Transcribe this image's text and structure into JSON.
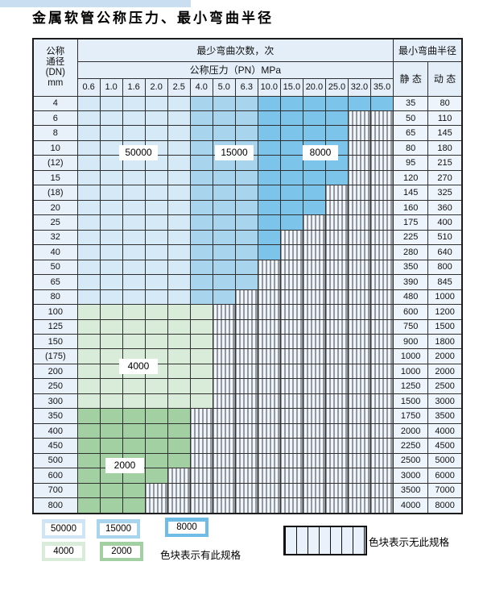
{
  "title": "金属软管公称压力、最小弯曲半径",
  "colors": {
    "cycles_50000_blue": "#d5e9f6",
    "cycles_15000_blue": "#a9d4ee",
    "cycles_8000_blue": "#7cc4e9",
    "cycles_4000_green": "#d9ecd9",
    "cycles_2000_green": "#a2d0a3",
    "hatch_cell_bg": "#eef5fc",
    "grid_line": "#2f2f2f",
    "header_bg": "#e3eef8",
    "label_col_bg": "#e8f1fa",
    "value_col_bg": "#edf4fb",
    "top_strip": "#c9dff1"
  },
  "header": {
    "dn_label_lines": [
      "公称",
      "通径",
      "(DN)",
      "mm"
    ],
    "bend_cycles_label": "最少弯曲次数，次",
    "min_bend_radius_label": "最小弯曲半径",
    "pressure_label": "公称压力（PN）MPa",
    "static_label": "静 态",
    "dynamic_label": "动 态"
  },
  "zone_labels": [
    "50000",
    "15000",
    "8000",
    "4000",
    "2000"
  ],
  "legend": {
    "has_spec_swatches": [
      {
        "label": "50000",
        "color": "#cfe4f4"
      },
      {
        "label": "15000",
        "color": "#a9d4ee"
      },
      {
        "label": "8000",
        "color": "#6fbde6"
      },
      {
        "label": "4000",
        "color": "#d9ecd9"
      },
      {
        "label": "2000",
        "color": "#a2d0a3"
      }
    ],
    "has_spec_text": "色块表示有此规格",
    "no_spec_text": "色块表示无此规格"
  },
  "chart_data": {
    "type": "table",
    "title": "金属软管公称压力、最小弯曲半径",
    "pressure_columns_mpa": [
      "0.6",
      "1.0",
      "1.6",
      "2.0",
      "2.5",
      "4.0",
      "5.0",
      "6.3",
      "10.0",
      "15.0",
      "20.0",
      "25.0",
      "32.0",
      "35.0"
    ],
    "cycle_zones": [
      {
        "cycles": "50000",
        "applies_to": "blue rows, pressure columns 0.6–2.5"
      },
      {
        "cycles": "15000",
        "applies_to": "blue rows, pressure columns 4.0–6.3"
      },
      {
        "cycles": "8000",
        "applies_to": "blue rows, pressure columns 10.0–35.0"
      },
      {
        "cycles": "4000",
        "applies_to": "light-green rows DN 100–300"
      },
      {
        "cycles": "2000",
        "applies_to": "dark-green rows DN 350–800"
      }
    ],
    "rows": [
      {
        "dn": "4",
        "max_pn": "35.0",
        "static": "35",
        "dynamic": "80"
      },
      {
        "dn": "6",
        "max_pn": "25.0",
        "static": "50",
        "dynamic": "110"
      },
      {
        "dn": "8",
        "max_pn": "25.0",
        "static": "65",
        "dynamic": "145"
      },
      {
        "dn": "10",
        "max_pn": "25.0",
        "static": "80",
        "dynamic": "180"
      },
      {
        "dn": "(12)",
        "max_pn": "25.0",
        "static": "95",
        "dynamic": "215"
      },
      {
        "dn": "15",
        "max_pn": "25.0",
        "static": "120",
        "dynamic": "270"
      },
      {
        "dn": "(18)",
        "max_pn": "20.0",
        "static": "145",
        "dynamic": "325"
      },
      {
        "dn": "20",
        "max_pn": "20.0",
        "static": "160",
        "dynamic": "360"
      },
      {
        "dn": "25",
        "max_pn": "15.0",
        "static": "175",
        "dynamic": "400"
      },
      {
        "dn": "32",
        "max_pn": "10.0",
        "static": "225",
        "dynamic": "510"
      },
      {
        "dn": "40",
        "max_pn": "10.0",
        "static": "280",
        "dynamic": "640"
      },
      {
        "dn": "50",
        "max_pn": "6.3",
        "static": "350",
        "dynamic": "800"
      },
      {
        "dn": "65",
        "max_pn": "6.3",
        "static": "390",
        "dynamic": "845"
      },
      {
        "dn": "80",
        "max_pn": "5.0",
        "static": "480",
        "dynamic": "1000"
      },
      {
        "dn": "100",
        "max_pn": "4.0",
        "static": "600",
        "dynamic": "1200"
      },
      {
        "dn": "125",
        "max_pn": "4.0",
        "static": "750",
        "dynamic": "1500"
      },
      {
        "dn": "150",
        "max_pn": "4.0",
        "static": "900",
        "dynamic": "1800"
      },
      {
        "dn": "(175)",
        "max_pn": "4.0",
        "static": "1000",
        "dynamic": "2000"
      },
      {
        "dn": "200",
        "max_pn": "4.0",
        "static": "1000",
        "dynamic": "2000"
      },
      {
        "dn": "250",
        "max_pn": "4.0",
        "static": "1250",
        "dynamic": "2500"
      },
      {
        "dn": "300",
        "max_pn": "4.0",
        "static": "1500",
        "dynamic": "3000"
      },
      {
        "dn": "350",
        "max_pn": "2.5",
        "static": "1750",
        "dynamic": "3500"
      },
      {
        "dn": "400",
        "max_pn": "2.5",
        "static": "2000",
        "dynamic": "4000"
      },
      {
        "dn": "450",
        "max_pn": "2.5",
        "static": "2250",
        "dynamic": "4500"
      },
      {
        "dn": "500",
        "max_pn": "2.5",
        "static": "2500",
        "dynamic": "5000"
      },
      {
        "dn": "600",
        "max_pn": "2.0",
        "static": "3000",
        "dynamic": "6000"
      },
      {
        "dn": "700",
        "max_pn": "1.6",
        "static": "3500",
        "dynamic": "7000"
      },
      {
        "dn": "800",
        "max_pn": "1.6",
        "static": "4000",
        "dynamic": "8000"
      }
    ]
  }
}
